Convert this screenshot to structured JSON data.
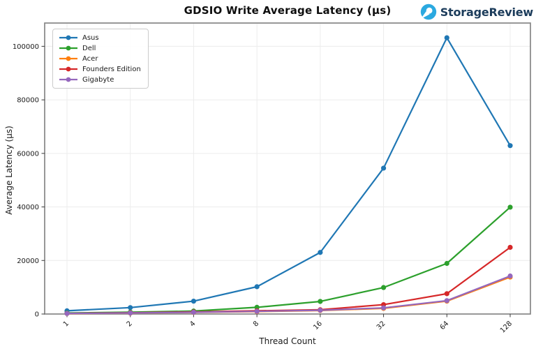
{
  "header": {
    "brand": {
      "name": "StorageReview",
      "icon": "storagereview-mark-icon",
      "icon_color": "#2BA9E0",
      "text_color": "#1C3C5B"
    }
  },
  "chart_data": {
    "type": "line",
    "title": "GDSIO Write Average Latency (μs)",
    "xlabel": "Thread Count",
    "ylabel": "Average Latency (μs)",
    "categories": [
      "1",
      "2",
      "4",
      "8",
      "16",
      "32",
      "64",
      "128"
    ],
    "series": [
      {
        "name": "Asus",
        "color": "#1f77b4",
        "values": [
          1200,
          2400,
          4800,
          10200,
          23000,
          54500,
          103200,
          62900
        ]
      },
      {
        "name": "Dell",
        "color": "#2ca02c",
        "values": [
          400,
          700,
          1100,
          2500,
          4700,
          9900,
          18900,
          39900
        ]
      },
      {
        "name": "Acer",
        "color": "#ff7f0e",
        "values": [
          200,
          350,
          600,
          900,
          1300,
          2100,
          4800,
          13800
        ]
      },
      {
        "name": "Founders Edition",
        "color": "#d62728",
        "values": [
          250,
          450,
          800,
          1200,
          1600,
          3500,
          7600,
          24900
        ]
      },
      {
        "name": "Gigabyte",
        "color": "#9467bd",
        "values": [
          220,
          400,
          650,
          1000,
          1400,
          2300,
          5000,
          14200
        ]
      }
    ],
    "yticks": [
      0,
      20000,
      40000,
      60000,
      80000,
      100000
    ],
    "ylim": [
      0,
      108700
    ],
    "grid": true,
    "legend_position": "upper left"
  }
}
